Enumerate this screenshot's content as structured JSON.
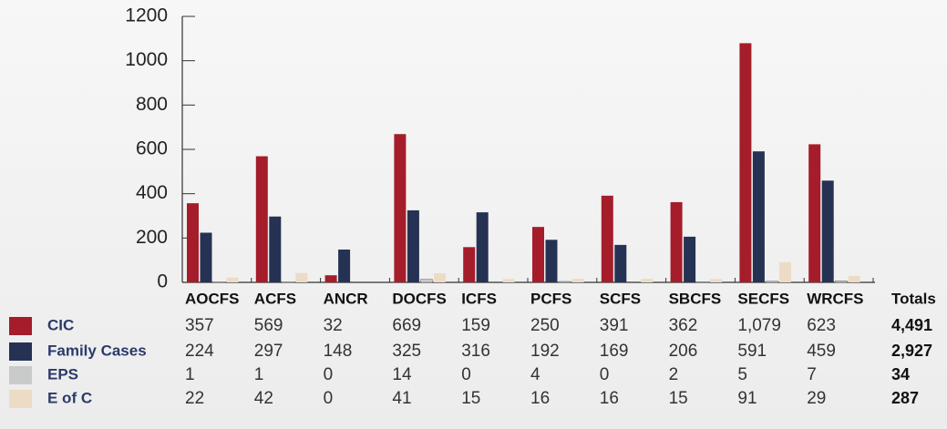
{
  "chart_data": {
    "type": "bar",
    "categories": [
      "AOCFS",
      "ACFS",
      "ANCR",
      "DOCFS",
      "ICFS",
      "PCFS",
      "SCFS",
      "SBCFS",
      "SECFS",
      "WRCFS"
    ],
    "series": [
      {
        "name": "CIC",
        "color": "#a51d2a",
        "values": [
          357,
          569,
          32,
          669,
          159,
          250,
          391,
          362,
          1079,
          623
        ],
        "value_labels": [
          "357",
          "569",
          "32",
          "669",
          "159",
          "250",
          "391",
          "362",
          "1,079",
          "623"
        ],
        "total": 4491,
        "total_label": "4,491"
      },
      {
        "name": "Family Cases",
        "color": "#253253",
        "values": [
          224,
          297,
          148,
          325,
          316,
          192,
          169,
          206,
          591,
          459
        ],
        "total": 2927,
        "total_label": "2,927"
      },
      {
        "name": "EPS",
        "color": "#c9cbcb",
        "values": [
          1,
          1,
          0,
          14,
          0,
          4,
          0,
          2,
          5,
          7
        ],
        "total": 34
      },
      {
        "name": "E of C",
        "color": "#ecdcc6",
        "values": [
          22,
          42,
          0,
          41,
          15,
          16,
          16,
          15,
          91,
          29
        ],
        "total": 287
      }
    ],
    "totals_label": "Totals",
    "ylim": [
      0,
      1200
    ],
    "yticks": [
      0,
      200,
      400,
      600,
      800,
      1000,
      1200
    ]
  }
}
